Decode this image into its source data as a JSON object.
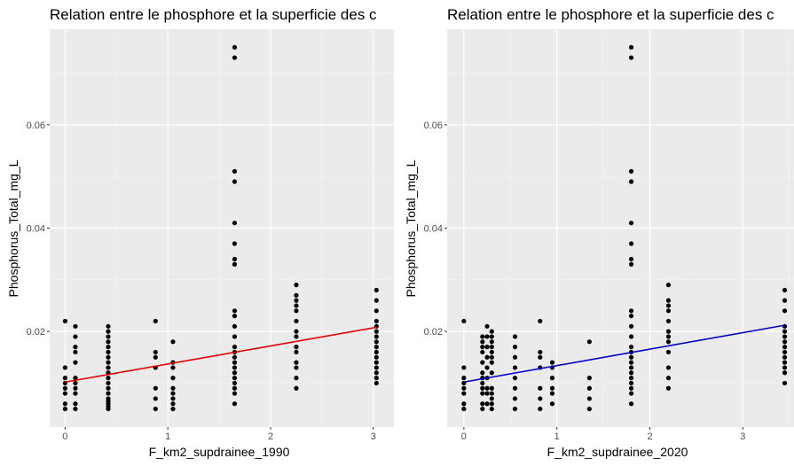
{
  "chart_data": [
    {
      "type": "scatter",
      "title": "Relation entre le phosphore et la superficie des c",
      "xlabel": "F_km2_supdrainee_1990",
      "ylabel": "Phosphorus_Total_mg_L",
      "xlim": [
        -0.15,
        3.2
      ],
      "ylim": [
        0.0015,
        0.0785
      ],
      "x_ticks": [
        0,
        1,
        2,
        3
      ],
      "x_tick_labels": [
        "0",
        "1",
        "2",
        "3"
      ],
      "y_ticks": [
        0.02,
        0.04,
        0.06
      ],
      "y_tick_labels": [
        "0.02",
        "0.04",
        "0.06"
      ],
      "grid": true,
      "trend": {
        "x": [
          0,
          3.03
        ],
        "y": [
          0.0102,
          0.0208
        ],
        "color": "#e60000"
      },
      "series": [
        {
          "values": [
            [
              0,
              0.005
            ],
            [
              0,
              0.006
            ],
            [
              0,
              0.008
            ],
            [
              0,
              0.009
            ],
            [
              0,
              0.01
            ],
            [
              0,
              0.011
            ],
            [
              0,
              0.013
            ],
            [
              0,
              0.022
            ],
            [
              0.1,
              0.005
            ],
            [
              0.1,
              0.006
            ],
            [
              0.1,
              0.008
            ],
            [
              0.1,
              0.009
            ],
            [
              0.1,
              0.01
            ],
            [
              0.1,
              0.011
            ],
            [
              0.1,
              0.014
            ],
            [
              0.1,
              0.016
            ],
            [
              0.1,
              0.017
            ],
            [
              0.1,
              0.019
            ],
            [
              0.1,
              0.021
            ],
            [
              0.42,
              0.005
            ],
            [
              0.42,
              0.0055
            ],
            [
              0.42,
              0.006
            ],
            [
              0.42,
              0.0065
            ],
            [
              0.42,
              0.007
            ],
            [
              0.42,
              0.008
            ],
            [
              0.42,
              0.009
            ],
            [
              0.42,
              0.01
            ],
            [
              0.42,
              0.011
            ],
            [
              0.42,
              0.012
            ],
            [
              0.42,
              0.013
            ],
            [
              0.42,
              0.014
            ],
            [
              0.42,
              0.015
            ],
            [
              0.42,
              0.016
            ],
            [
              0.42,
              0.017
            ],
            [
              0.42,
              0.018
            ],
            [
              0.42,
              0.019
            ],
            [
              0.42,
              0.02
            ],
            [
              0.42,
              0.021
            ],
            [
              0.88,
              0.005
            ],
            [
              0.88,
              0.007
            ],
            [
              0.88,
              0.009
            ],
            [
              0.88,
              0.013
            ],
            [
              0.88,
              0.015
            ],
            [
              0.88,
              0.016
            ],
            [
              0.88,
              0.022
            ],
            [
              1.05,
              0.005
            ],
            [
              1.05,
              0.006
            ],
            [
              1.05,
              0.007
            ],
            [
              1.05,
              0.008
            ],
            [
              1.05,
              0.009
            ],
            [
              1.05,
              0.011
            ],
            [
              1.05,
              0.013
            ],
            [
              1.05,
              0.014
            ],
            [
              1.05,
              0.018
            ],
            [
              1.65,
              0.006
            ],
            [
              1.65,
              0.008
            ],
            [
              1.65,
              0.009
            ],
            [
              1.65,
              0.01
            ],
            [
              1.65,
              0.011
            ],
            [
              1.65,
              0.012
            ],
            [
              1.65,
              0.013
            ],
            [
              1.65,
              0.014
            ],
            [
              1.65,
              0.015
            ],
            [
              1.65,
              0.016
            ],
            [
              1.65,
              0.017
            ],
            [
              1.65,
              0.019
            ],
            [
              1.65,
              0.021
            ],
            [
              1.65,
              0.023
            ],
            [
              1.65,
              0.024
            ],
            [
              1.65,
              0.033
            ],
            [
              1.65,
              0.034
            ],
            [
              1.65,
              0.037
            ],
            [
              1.65,
              0.041
            ],
            [
              1.65,
              0.049
            ],
            [
              1.65,
              0.051
            ],
            [
              1.65,
              0.073
            ],
            [
              1.65,
              0.075
            ],
            [
              2.25,
              0.009
            ],
            [
              2.25,
              0.011
            ],
            [
              2.25,
              0.013
            ],
            [
              2.25,
              0.014
            ],
            [
              2.25,
              0.016
            ],
            [
              2.25,
              0.017
            ],
            [
              2.25,
              0.019
            ],
            [
              2.25,
              0.02
            ],
            [
              2.25,
              0.022
            ],
            [
              2.25,
              0.024
            ],
            [
              2.25,
              0.025
            ],
            [
              2.25,
              0.026
            ],
            [
              2.25,
              0.027
            ],
            [
              2.25,
              0.029
            ],
            [
              3.03,
              0.01
            ],
            [
              3.03,
              0.011
            ],
            [
              3.03,
              0.012
            ],
            [
              3.03,
              0.013
            ],
            [
              3.03,
              0.014
            ],
            [
              3.03,
              0.015
            ],
            [
              3.03,
              0.016
            ],
            [
              3.03,
              0.017
            ],
            [
              3.03,
              0.018
            ],
            [
              3.03,
              0.019
            ],
            [
              3.03,
              0.02
            ],
            [
              3.03,
              0.021
            ],
            [
              3.03,
              0.022
            ],
            [
              3.03,
              0.024
            ],
            [
              3.03,
              0.026
            ],
            [
              3.03,
              0.028
            ]
          ]
        }
      ]
    },
    {
      "type": "scatter",
      "title": "Relation entre le phosphore et la superficie des c",
      "xlabel": "F_km2_supdrainee_2020",
      "ylabel": "Phosphorus_Total_mg_L",
      "xlim": [
        -0.18,
        3.55
      ],
      "ylim": [
        0.0015,
        0.0785
      ],
      "x_ticks": [
        0,
        1,
        2,
        3
      ],
      "x_tick_labels": [
        "0",
        "1",
        "2",
        "3"
      ],
      "y_ticks": [
        0.02,
        0.04,
        0.06
      ],
      "y_tick_labels": [
        "0.02",
        "0.04",
        "0.06"
      ],
      "grid": true,
      "trend": {
        "x": [
          0,
          3.45
        ],
        "y": [
          0.0102,
          0.0212
        ],
        "color": "#0000cc"
      },
      "series": [
        {
          "values": [
            [
              0,
              0.005
            ],
            [
              0,
              0.006
            ],
            [
              0,
              0.008
            ],
            [
              0,
              0.009
            ],
            [
              0,
              0.01
            ],
            [
              0,
              0.011
            ],
            [
              0,
              0.013
            ],
            [
              0,
              0.022
            ],
            [
              0.2,
              0.005
            ],
            [
              0.2,
              0.006
            ],
            [
              0.2,
              0.008
            ],
            [
              0.2,
              0.009
            ],
            [
              0.2,
              0.01
            ],
            [
              0.2,
              0.011
            ],
            [
              0.2,
              0.012
            ],
            [
              0.2,
              0.014
            ],
            [
              0.2,
              0.016
            ],
            [
              0.2,
              0.017
            ],
            [
              0.2,
              0.018
            ],
            [
              0.2,
              0.019
            ],
            [
              0.25,
              0.006
            ],
            [
              0.25,
              0.008
            ],
            [
              0.25,
              0.009
            ],
            [
              0.25,
              0.011
            ],
            [
              0.25,
              0.013
            ],
            [
              0.25,
              0.015
            ],
            [
              0.25,
              0.017
            ],
            [
              0.25,
              0.019
            ],
            [
              0.25,
              0.021
            ],
            [
              0.3,
              0.005
            ],
            [
              0.3,
              0.006
            ],
            [
              0.3,
              0.007
            ],
            [
              0.3,
              0.008
            ],
            [
              0.3,
              0.009
            ],
            [
              0.3,
              0.012
            ],
            [
              0.3,
              0.014
            ],
            [
              0.3,
              0.015
            ],
            [
              0.3,
              0.016
            ],
            [
              0.3,
              0.017
            ],
            [
              0.3,
              0.018
            ],
            [
              0.3,
              0.019
            ],
            [
              0.3,
              0.02
            ],
            [
              0.55,
              0.005
            ],
            [
              0.55,
              0.007
            ],
            [
              0.55,
              0.009
            ],
            [
              0.55,
              0.011
            ],
            [
              0.55,
              0.013
            ],
            [
              0.55,
              0.015
            ],
            [
              0.55,
              0.017
            ],
            [
              0.55,
              0.019
            ],
            [
              0.82,
              0.005
            ],
            [
              0.82,
              0.007
            ],
            [
              0.82,
              0.009
            ],
            [
              0.82,
              0.013
            ],
            [
              0.82,
              0.015
            ],
            [
              0.82,
              0.016
            ],
            [
              0.82,
              0.022
            ],
            [
              0.95,
              0.006
            ],
            [
              0.95,
              0.008
            ],
            [
              0.95,
              0.009
            ],
            [
              0.95,
              0.011
            ],
            [
              0.95,
              0.013
            ],
            [
              0.95,
              0.014
            ],
            [
              1.35,
              0.005
            ],
            [
              1.35,
              0.007
            ],
            [
              1.35,
              0.009
            ],
            [
              1.35,
              0.011
            ],
            [
              1.35,
              0.018
            ],
            [
              1.8,
              0.006
            ],
            [
              1.8,
              0.008
            ],
            [
              1.8,
              0.009
            ],
            [
              1.8,
              0.01
            ],
            [
              1.8,
              0.011
            ],
            [
              1.8,
              0.012
            ],
            [
              1.8,
              0.013
            ],
            [
              1.8,
              0.014
            ],
            [
              1.8,
              0.015
            ],
            [
              1.8,
              0.016
            ],
            [
              1.8,
              0.017
            ],
            [
              1.8,
              0.019
            ],
            [
              1.8,
              0.021
            ],
            [
              1.8,
              0.023
            ],
            [
              1.8,
              0.024
            ],
            [
              1.8,
              0.033
            ],
            [
              1.8,
              0.034
            ],
            [
              1.8,
              0.037
            ],
            [
              1.8,
              0.041
            ],
            [
              1.8,
              0.049
            ],
            [
              1.8,
              0.051
            ],
            [
              1.8,
              0.073
            ],
            [
              1.8,
              0.075
            ],
            [
              2.2,
              0.009
            ],
            [
              2.2,
              0.011
            ],
            [
              2.2,
              0.013
            ],
            [
              2.2,
              0.016
            ],
            [
              2.2,
              0.018
            ],
            [
              2.2,
              0.019
            ],
            [
              2.2,
              0.02
            ],
            [
              2.2,
              0.022
            ],
            [
              2.2,
              0.024
            ],
            [
              2.2,
              0.025
            ],
            [
              2.2,
              0.026
            ],
            [
              2.2,
              0.029
            ],
            [
              3.45,
              0.01
            ],
            [
              3.45,
              0.012
            ],
            [
              3.45,
              0.013
            ],
            [
              3.45,
              0.014
            ],
            [
              3.45,
              0.015
            ],
            [
              3.45,
              0.016
            ],
            [
              3.45,
              0.017
            ],
            [
              3.45,
              0.018
            ],
            [
              3.45,
              0.019
            ],
            [
              3.45,
              0.02
            ],
            [
              3.45,
              0.021
            ],
            [
              3.45,
              0.024
            ],
            [
              3.45,
              0.026
            ],
            [
              3.45,
              0.028
            ]
          ]
        }
      ]
    }
  ]
}
